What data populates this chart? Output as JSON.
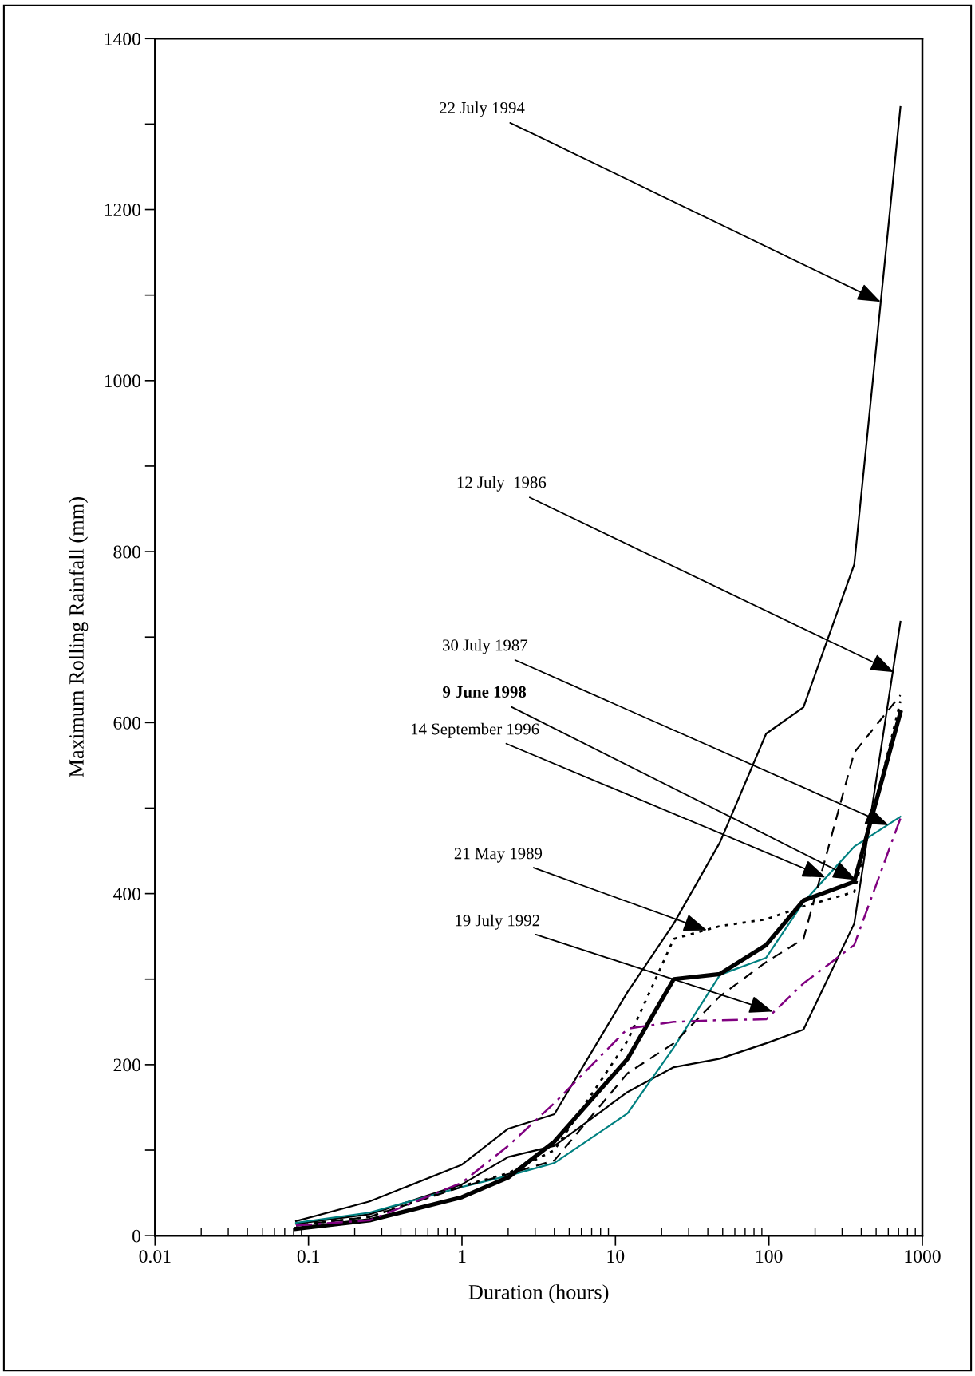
{
  "chart_data": {
    "type": "line",
    "xlabel": "Duration (hours)",
    "ylabel": "Maximum Rolling Rainfall (mm)",
    "log": "x",
    "grid": false,
    "legend": false,
    "marker": "none",
    "xlim": [
      0.01,
      1000
    ],
    "xticks": [
      0.01,
      0.1,
      1,
      10,
      100,
      1000
    ],
    "ylim": [
      0,
      1400
    ],
    "yticks": [
      0,
      {
        "value": 100,
        "label": null
      },
      200,
      {
        "value": 300,
        "label": null
      },
      400,
      {
        "value": 500,
        "label": null
      },
      600,
      {
        "value": 700,
        "label": null
      },
      800,
      {
        "value": 900,
        "label": null
      },
      1000,
      {
        "value": 1100,
        "label": null
      },
      1200,
      {
        "value": 1300,
        "label": null
      },
      1400
    ],
    "x": [
      0.083,
      0.25,
      1,
      2,
      4,
      12,
      24,
      48,
      96,
      168,
      360,
      720
    ],
    "series": [
      {
        "color": "#000000",
        "line_style": "solid",
        "values": [
          17,
          40,
          83,
          125,
          142,
          285,
          365,
          460,
          587,
          618,
          785,
          1320
        ]
      },
      {
        "color": "#000000",
        "line_style": "solid",
        "values": [
          14,
          25,
          60,
          92,
          105,
          168,
          197,
          207,
          225,
          241,
          365,
          718
        ]
      },
      {
        "color": "#008080",
        "line_style": "solid",
        "values": [
          15,
          27,
          57,
          70,
          85,
          143,
          220,
          305,
          325,
          390,
          455,
          490
        ]
      },
      {
        "color": "#000000",
        "line_style": "solid",
        "values": [
          8,
          18,
          45,
          68,
          110,
          207,
          300,
          306,
          340,
          392,
          414,
          612
        ]
      },
      {
        "color": "#000000",
        "line_style": "dashed",
        "values": [
          12,
          22,
          57,
          72,
          88,
          190,
          225,
          280,
          320,
          347,
          565,
          632
        ]
      },
      {
        "color": "#000000",
        "line_style": "dotted",
        "values": [
          12,
          22,
          58,
          73,
          100,
          228,
          347,
          362,
          370,
          385,
          402,
          625
        ]
      },
      {
        "color": "#800080",
        "line_style": "dashdot",
        "values": [
          12,
          18,
          62,
          105,
          155,
          242,
          250,
          252,
          253,
          295,
          340,
          488
        ]
      }
    ],
    "annotations": [
      {
        "text": "22 July 1994",
        "x": 536,
        "y": 1092
      },
      {
        "text": "12 July  1986",
        "x": 653,
        "y": 659
      },
      {
        "text": "30 July 1987",
        "x": 603,
        "y": 480
      },
      {
        "text": "9 June 1998",
        "x": 370,
        "y": 416
      },
      {
        "text": "14 September 1996",
        "x": 234,
        "y": 419
      },
      {
        "text": "21 May 1989",
        "x": 39.5,
        "y": 357
      },
      {
        "text": "19 July 1992",
        "x": 106,
        "y": 262
      }
    ]
  }
}
